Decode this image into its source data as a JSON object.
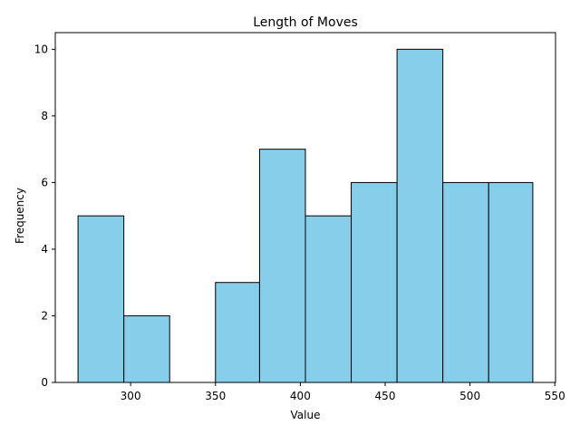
{
  "chart_data": {
    "type": "bar",
    "title": "Length of Moves",
    "xlabel": "Value",
    "ylabel": "Frequency",
    "bins": [
      {
        "start": 269,
        "end": 296,
        "count": 5
      },
      {
        "start": 296,
        "end": 323,
        "count": 2
      },
      {
        "start": 323,
        "end": 350,
        "count": 0
      },
      {
        "start": 350,
        "end": 376,
        "count": 3
      },
      {
        "start": 376,
        "end": 403,
        "count": 7
      },
      {
        "start": 403,
        "end": 430,
        "count": 5
      },
      {
        "start": 430,
        "end": 457,
        "count": 6
      },
      {
        "start": 457,
        "end": 484,
        "count": 10
      },
      {
        "start": 484,
        "end": 511,
        "count": 6
      },
      {
        "start": 511,
        "end": 537,
        "count": 6
      }
    ],
    "xlim": [
      255.6,
      550.4
    ],
    "ylim": [
      0,
      10.5
    ],
    "xticks": [
      300,
      350,
      400,
      450,
      500,
      550
    ],
    "yticks": [
      0,
      2,
      4,
      6,
      8,
      10
    ],
    "bar_color": "#87ceeb",
    "edge_color": "#000000",
    "grid": false,
    "legend": "none"
  }
}
